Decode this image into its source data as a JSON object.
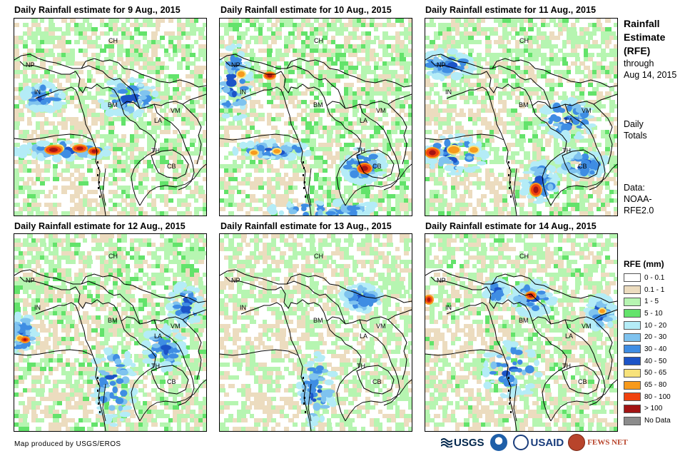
{
  "panels": [
    {
      "title": "Daily Rainfall estimate for 9 Aug., 2015",
      "variant": 0
    },
    {
      "title": "Daily Rainfall estimate for 10 Aug., 2015",
      "variant": 1
    },
    {
      "title": "Daily Rainfall estimate for 11 Aug., 2015",
      "variant": 2
    },
    {
      "title": "Daily Rainfall estimate for 12 Aug., 2015",
      "variant": 3
    },
    {
      "title": "Daily Rainfall estimate for 13 Aug., 2015",
      "variant": 4
    },
    {
      "title": "Daily Rainfall estimate for 14 Aug., 2015",
      "variant": 5
    }
  ],
  "country_labels": {
    "ch": "CH",
    "np": "NP",
    "in": "IN",
    "bm": "BM",
    "la": "LA",
    "vm": "VM",
    "th": "TH",
    "cb": "CB"
  },
  "sidebar": {
    "title_line1": "Rainfall",
    "title_line2": "Estimate",
    "title_line3": "(RFE)",
    "through_line1": "through",
    "through_line2": "Aug 14, 2015",
    "totals_line1": "Daily",
    "totals_line2": "Totals",
    "data_line1": "Data:",
    "data_line2": "NOAA-",
    "data_line3": "RFE2.0"
  },
  "legend": {
    "title": "RFE (mm)",
    "items": [
      {
        "label": "0 - 0.1",
        "color": "#ffffff"
      },
      {
        "label": "0.1 - 1",
        "color": "#ecdcbf"
      },
      {
        "label": "1 - 5",
        "color": "#b6f5b1"
      },
      {
        "label": "5 - 10",
        "color": "#63e36b"
      },
      {
        "label": "10 - 20",
        "color": "#b4ecf7"
      },
      {
        "label": "20 - 30",
        "color": "#7fc3ef"
      },
      {
        "label": "30 - 40",
        "color": "#3f8de3"
      },
      {
        "label": "40 - 50",
        "color": "#1c54c7"
      },
      {
        "label": "50 - 65",
        "color": "#f7e27a"
      },
      {
        "label": "65 - 80",
        "color": "#f79a1c"
      },
      {
        "label": "80 - 100",
        "color": "#f0420f"
      },
      {
        "label": "> 100",
        "color": "#a31414"
      },
      {
        "label": "No Data",
        "color": "#8c8c8c"
      }
    ]
  },
  "credit": "Map produced by USGS/EROS",
  "logos": {
    "usgs": "USGS",
    "usaid": "USAID",
    "fews": "FEWS NET"
  }
}
